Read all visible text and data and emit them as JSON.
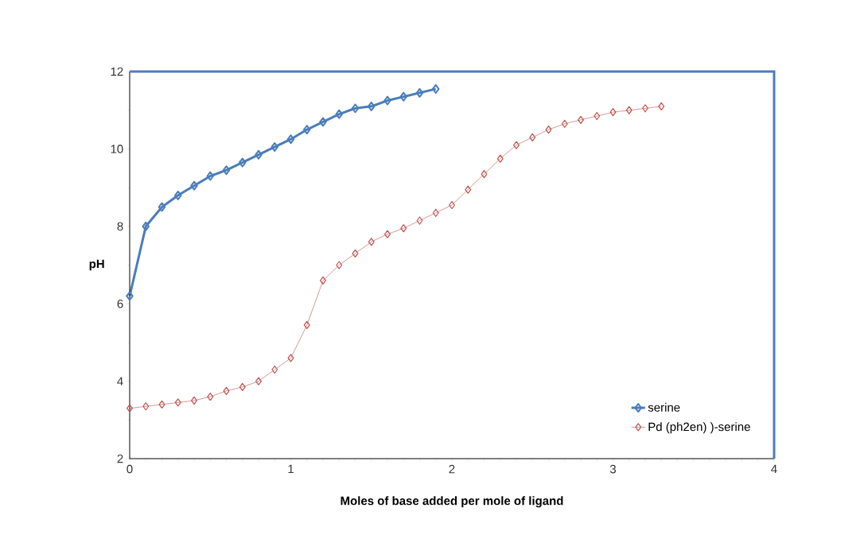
{
  "chart_data": {
    "type": "line",
    "xlabel": "Moles of base added per mole of ligand",
    "ylabel": "pH",
    "xlim": [
      0,
      4
    ],
    "ylim": [
      2,
      12
    ],
    "xticks": [
      0,
      1,
      2,
      3,
      4
    ],
    "yticks": [
      2,
      4,
      6,
      8,
      10,
      12
    ],
    "legend": "bottom right",
    "marker": "diamond",
    "grid": false,
    "series": [
      {
        "name": "serine",
        "color": "#4a7ebb",
        "x": [
          0,
          0.1,
          0.2,
          0.3,
          0.4,
          0.5,
          0.6,
          0.7,
          0.8,
          0.9,
          1.0,
          1.1,
          1.2,
          1.3,
          1.4,
          1.5,
          1.6,
          1.7,
          1.8,
          1.9
        ],
        "values": [
          6.2,
          8.0,
          8.5,
          8.8,
          9.05,
          9.3,
          9.45,
          9.65,
          9.85,
          10.05,
          10.25,
          10.5,
          10.7,
          10.9,
          11.05,
          11.1,
          11.25,
          11.35,
          11.45,
          11.55
        ]
      },
      {
        "name": "Pd (ph2en) )-serine",
        "color": "#c0504d",
        "x": [
          0,
          0.1,
          0.2,
          0.3,
          0.4,
          0.5,
          0.6,
          0.7,
          0.8,
          0.9,
          1.0,
          1.1,
          1.2,
          1.3,
          1.4,
          1.5,
          1.6,
          1.7,
          1.8,
          1.9,
          2.0,
          2.1,
          2.2,
          2.3,
          2.4,
          2.5,
          2.6,
          2.7,
          2.8,
          2.9,
          3.0,
          3.1,
          3.2,
          3.3
        ],
        "values": [
          3.3,
          3.35,
          3.4,
          3.45,
          3.5,
          3.6,
          3.75,
          3.85,
          4.0,
          4.3,
          4.6,
          5.45,
          6.6,
          7.0,
          7.3,
          7.6,
          7.8,
          7.95,
          8.15,
          8.35,
          8.55,
          8.95,
          9.35,
          9.75,
          10.1,
          10.3,
          10.5,
          10.65,
          10.75,
          10.85,
          10.95,
          11.0,
          11.05,
          11.1
        ]
      }
    ]
  }
}
